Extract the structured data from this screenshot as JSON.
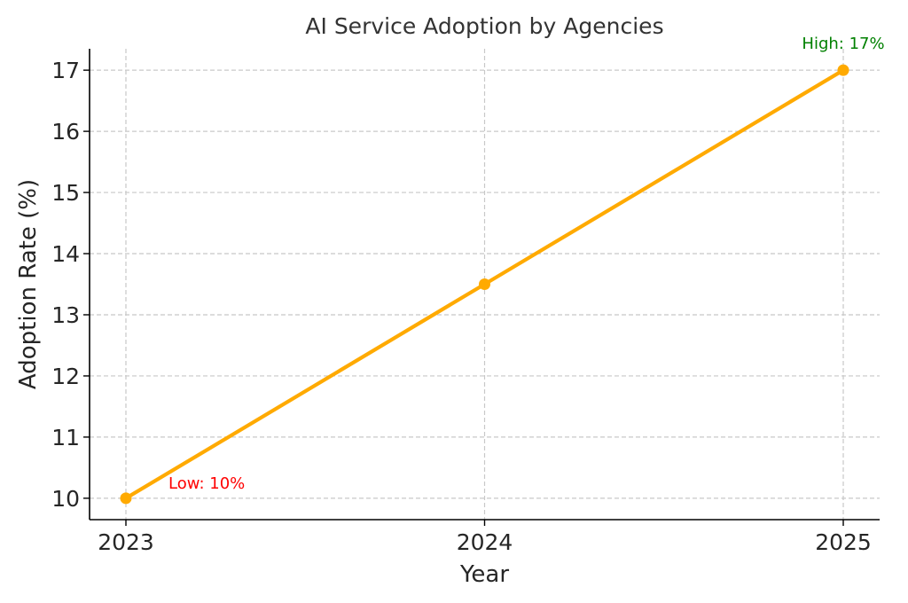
{
  "chart_data": {
    "type": "line",
    "title": "AI Service Adoption by Agencies",
    "xlabel": "Year",
    "ylabel": "Adoption Rate (%)",
    "x": [
      "2023",
      "2024",
      "2025"
    ],
    "series": [
      {
        "values": [
          10,
          13.5,
          17
        ],
        "color": "#FFAA00"
      }
    ],
    "yticks": [
      "10",
      "11",
      "12",
      "13",
      "14",
      "15",
      "16",
      "17"
    ],
    "ylim": [
      9.65,
      17.35
    ],
    "grid": true,
    "annotations": [
      {
        "text": "Low: 10%",
        "x": "2023",
        "y": 10,
        "color": "#FF0000"
      },
      {
        "text": "High: 17%",
        "x": "2025",
        "y": 17,
        "color": "#008000"
      }
    ]
  }
}
